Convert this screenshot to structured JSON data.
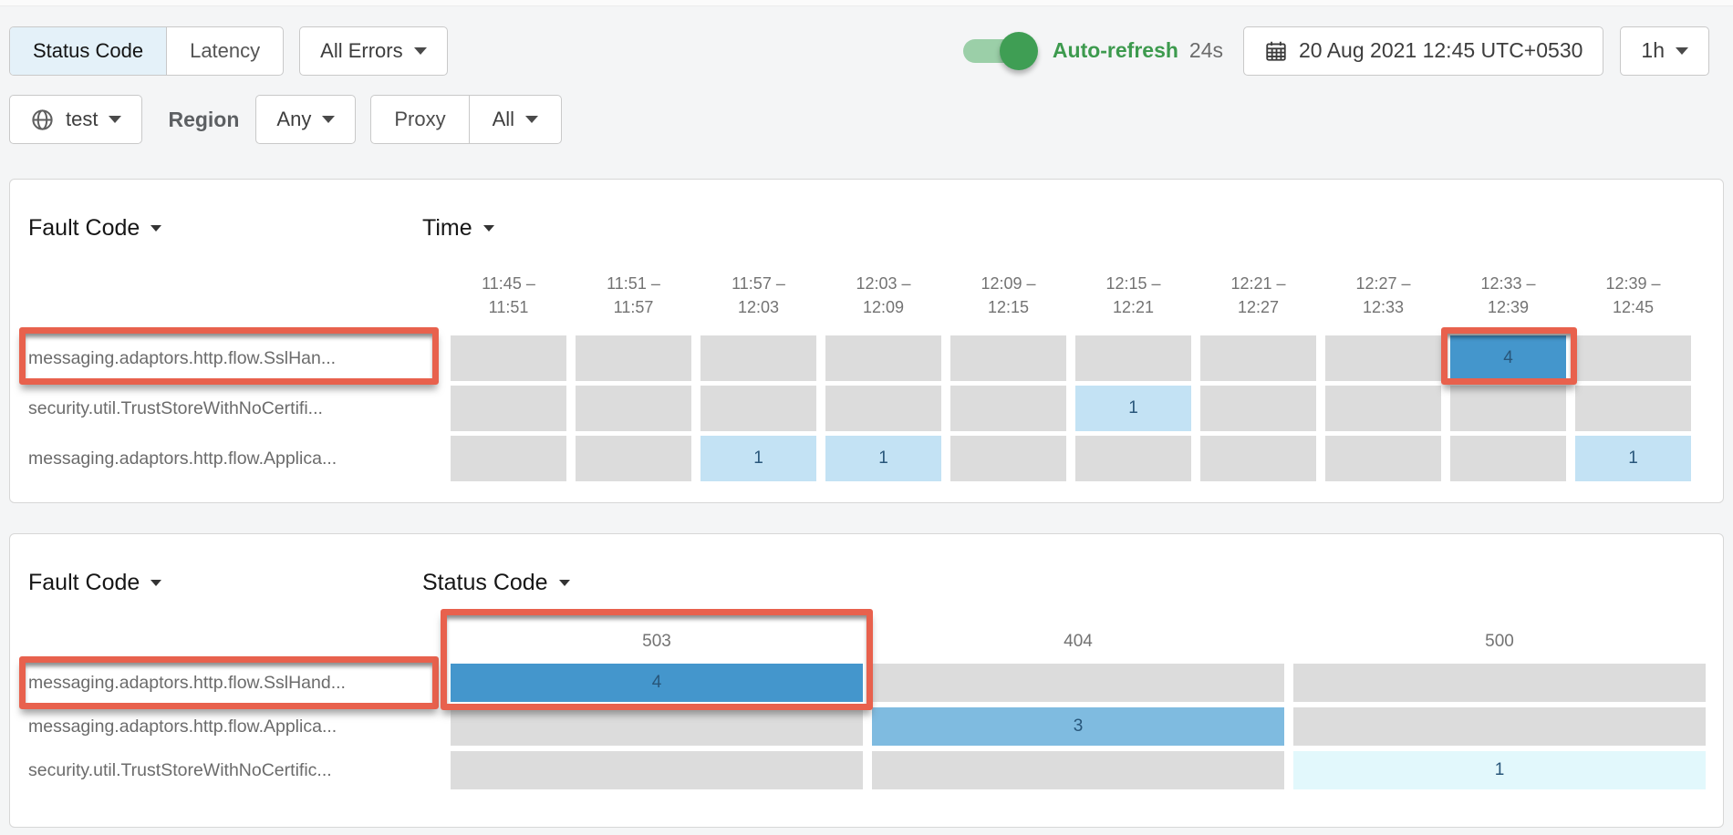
{
  "toolbar": {
    "tabs": [
      {
        "label": "Status Code",
        "active": true
      },
      {
        "label": "Latency",
        "active": false
      }
    ],
    "errors_dropdown": "All Errors",
    "auto_refresh": {
      "label": "Auto-refresh",
      "countdown": "24s",
      "enabled": true
    },
    "date_range": "20 Aug 2021 12:45 UTC+0530",
    "interval": "1h"
  },
  "filters": {
    "env_dropdown": "test",
    "region_label": "Region",
    "region_value": "Any",
    "proxy_label": "Proxy",
    "proxy_value": "All"
  },
  "panel1": {
    "row_header": "Fault Code",
    "col_header": "Time",
    "columns": [
      {
        "from": "11:45",
        "to": "11:51"
      },
      {
        "from": "11:51",
        "to": "11:57"
      },
      {
        "from": "11:57",
        "to": "12:03"
      },
      {
        "from": "12:03",
        "to": "12:09"
      },
      {
        "from": "12:09",
        "to": "12:15"
      },
      {
        "from": "12:15",
        "to": "12:21"
      },
      {
        "from": "12:21",
        "to": "12:27"
      },
      {
        "from": "12:27",
        "to": "12:33"
      },
      {
        "from": "12:33",
        "to": "12:39"
      },
      {
        "from": "12:39",
        "to": "12:45"
      }
    ],
    "rows": [
      {
        "label": "messaging.adaptors.http.flow.SslHan...",
        "label_highlighted": true,
        "cells": [
          null,
          null,
          null,
          null,
          null,
          null,
          null,
          null,
          {
            "value": 4,
            "level": "dark",
            "highlighted": true
          },
          null
        ]
      },
      {
        "label": "security.util.TrustStoreWithNoCertifi...",
        "label_highlighted": false,
        "cells": [
          null,
          null,
          null,
          null,
          null,
          {
            "value": 1,
            "level": "light"
          },
          null,
          null,
          null,
          null
        ]
      },
      {
        "label": "messaging.adaptors.http.flow.Applica...",
        "label_highlighted": false,
        "cells": [
          null,
          null,
          {
            "value": 1,
            "level": "light"
          },
          {
            "value": 1,
            "level": "light"
          },
          null,
          null,
          null,
          null,
          null,
          {
            "value": 1,
            "level": "light"
          }
        ]
      }
    ]
  },
  "panel2": {
    "row_header": "Fault Code",
    "col_header": "Status Code",
    "columns": [
      {
        "label": "503",
        "highlighted": true
      },
      {
        "label": "404",
        "highlighted": false
      },
      {
        "label": "500",
        "highlighted": false
      }
    ],
    "rows": [
      {
        "label": "messaging.adaptors.http.flow.SslHand...",
        "label_highlighted": true,
        "cells": [
          {
            "value": 4,
            "level": "dark",
            "highlighted": true
          },
          null,
          null
        ]
      },
      {
        "label": "messaging.adaptors.http.flow.Applica...",
        "label_highlighted": false,
        "cells": [
          null,
          {
            "value": 3,
            "level": "medium"
          },
          null
        ]
      },
      {
        "label": "security.util.TrustStoreWithNoCertific...",
        "label_highlighted": false,
        "cells": [
          null,
          null,
          {
            "value": 1,
            "level": "palest"
          }
        ]
      }
    ]
  },
  "colors": {
    "accent_red": "#e8614d",
    "cell_empty": "#dcdcdc",
    "cell_light": "#c3e2f4",
    "cell_medium": "#7fbbe0",
    "cell_dark": "#4496cc",
    "cell_palest": "#e2f8fc",
    "toggle_green": "#3f9e54",
    "active_tab_bg": "#e4f1f9"
  }
}
